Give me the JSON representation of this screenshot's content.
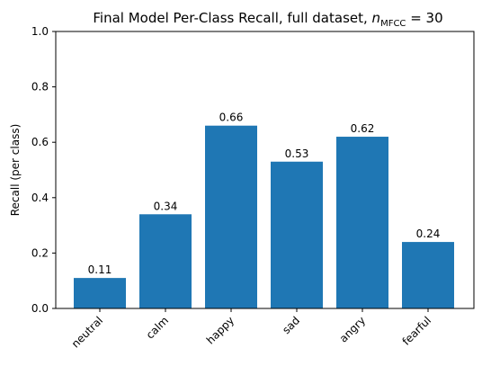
{
  "chart_data": {
    "type": "bar",
    "title": "Final Model Per-Class Recall, full dataset, ",
    "title_math": {
      "var": "n",
      "sub": "MFCC",
      "rest": " = 30"
    },
    "xlabel": "",
    "ylabel": "Recall (per class)",
    "categories": [
      "neutral",
      "calm",
      "happy",
      "sad",
      "angry",
      "fearful"
    ],
    "values": [
      0.11,
      0.34,
      0.66,
      0.53,
      0.62,
      0.24
    ],
    "data_labels": [
      "0.11",
      "0.34",
      "0.66",
      "0.53",
      "0.62",
      "0.24"
    ],
    "ylim": [
      0,
      1.0
    ],
    "yticks": [
      0.0,
      0.2,
      0.4,
      0.6,
      0.8,
      1.0
    ],
    "ytick_labels": [
      "0.0",
      "0.2",
      "0.4",
      "0.6",
      "0.8",
      "1.0"
    ],
    "grid": false,
    "bar_color": "#1f77b4"
  }
}
